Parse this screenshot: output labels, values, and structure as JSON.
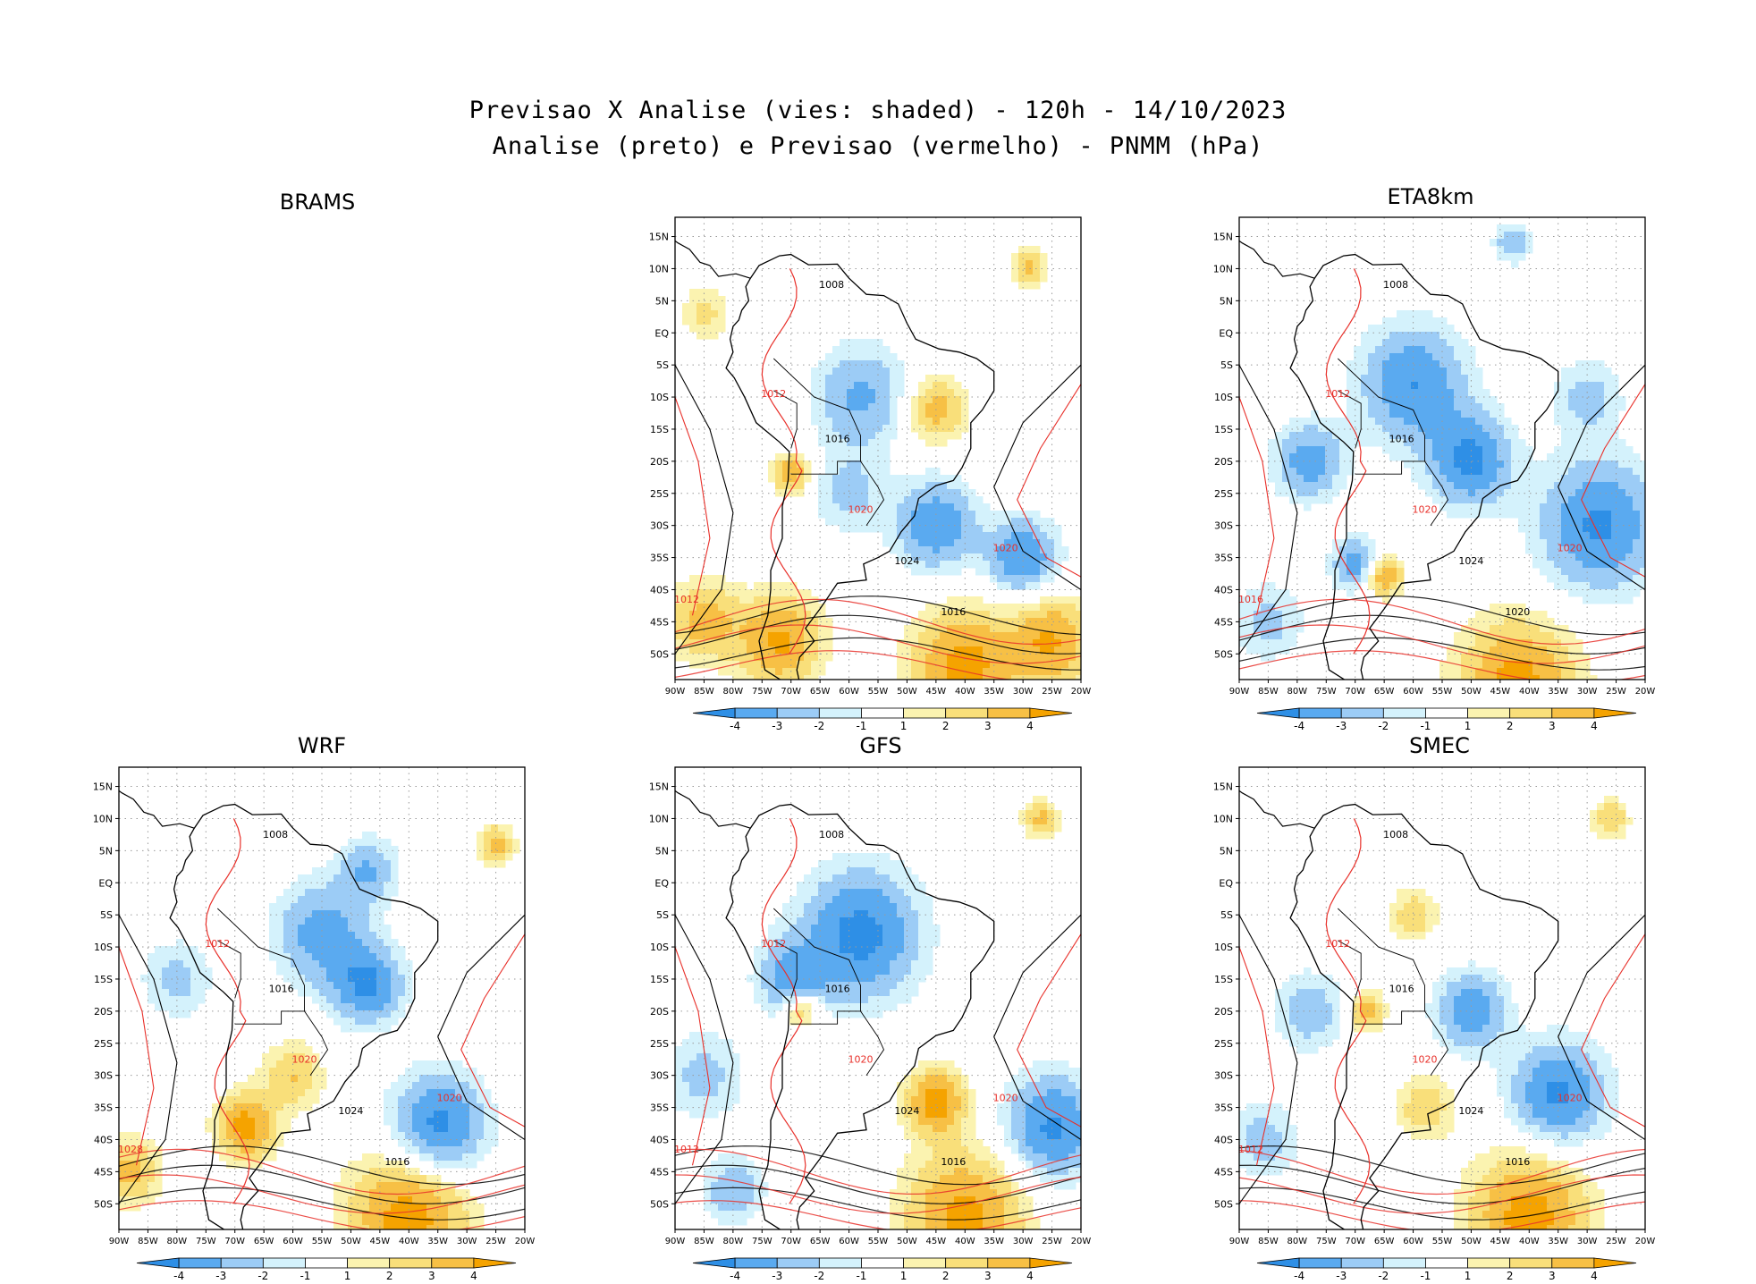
{
  "title": {
    "line1": "Previsao X Analise (vies: shaded) - 120h - 14/10/2023",
    "line2": "Analise (preto) e Previsao (vermelho) - PNMM (hPa)"
  },
  "lat_labels": [
    "15N",
    "10N",
    "5N",
    "EQ",
    "5S",
    "10S",
    "15S",
    "20S",
    "25S",
    "30S",
    "35S",
    "40S",
    "45S",
    "50S"
  ],
  "lon_labels": [
    "90W",
    "85W",
    "80W",
    "75W",
    "70W",
    "65W",
    "60W",
    "55W",
    "50W",
    "45W",
    "40W",
    "35W",
    "30W",
    "25W",
    "20W"
  ],
  "colorbar_ticks": [
    "-4",
    "-3",
    "-2",
    "-1",
    "1",
    "2",
    "3",
    "4"
  ],
  "colors": {
    "neg4": "#2e8fe6",
    "neg3": "#5aaaf0",
    "neg2": "#9cccf6",
    "neg1": "#d4f2fc",
    "zero": "#ffffff",
    "pos1": "#fbf3b0",
    "pos2": "#f9df7a",
    "pos3": "#f7c045",
    "pos4": "#f5a300",
    "analysis": "#000000",
    "forecast": "#e8302a"
  },
  "panels": [
    {
      "name": "BRAMS",
      "label": "BRAMS",
      "contour_labels": [
        "1008",
        "1012",
        "1016",
        "1020",
        "1024",
        "1012",
        "1016",
        "1020"
      ]
    },
    {
      "name": "ETA8km",
      "label": "ETA8km",
      "contour_labels": [
        "1008",
        "1012",
        "1016",
        "1020",
        "1024",
        "1016",
        "1020",
        "1020"
      ]
    },
    {
      "name": "WRF",
      "label": "WRF",
      "contour_labels": [
        "1008",
        "1012",
        "1016",
        "1020",
        "1024",
        "1028",
        "1016",
        "1020"
      ]
    },
    {
      "name": "GFS",
      "label": "GFS",
      "contour_labels": [
        "1008",
        "1012",
        "1016",
        "1020",
        "1024",
        "1012",
        "1016",
        "1020"
      ]
    },
    {
      "name": "SMEC",
      "label": "SMEC",
      "contour_labels": [
        "1008",
        "1012",
        "1016",
        "1020",
        "1024",
        "1012",
        "1016",
        "1020"
      ]
    }
  ]
}
